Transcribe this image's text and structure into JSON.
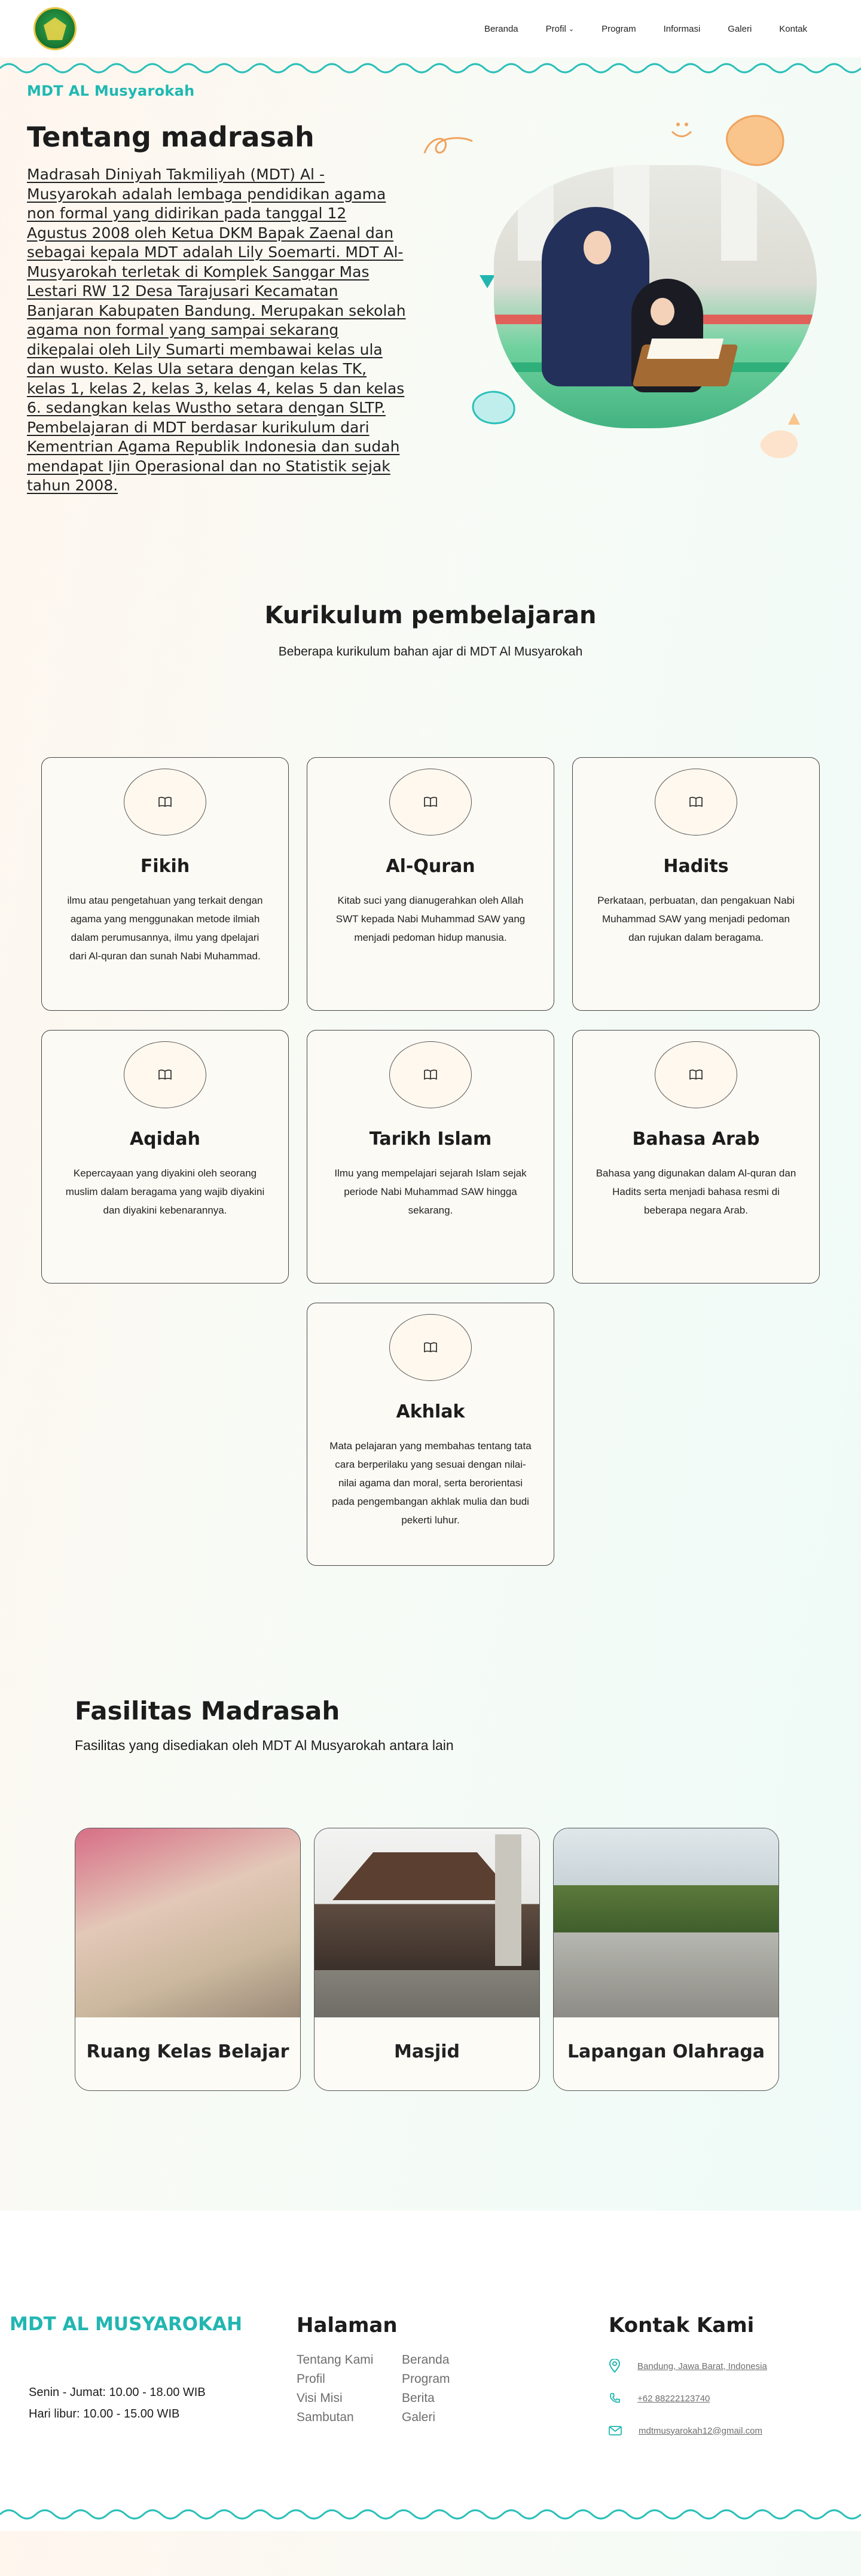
{
  "nav": {
    "items": [
      {
        "label": "Beranda"
      },
      {
        "label": "Profil",
        "has_dropdown": true
      },
      {
        "label": "Program"
      },
      {
        "label": "Informasi"
      },
      {
        "label": "Galeri"
      },
      {
        "label": "Kontak"
      }
    ]
  },
  "hero": {
    "eyebrow": "MDT AL Musyarokah",
    "title": "Tentang madrasah",
    "paragraph": "Madrasah Diniyah Takmiliyah (MDT) Al - Musyarokah adalah lembaga pendidikan agama non formal yang didirikan pada tanggal 12 Agustus 2008 oleh Ketua DKM Bapak Zaenal dan sebagai kepala MDT adalah Lily Soemarti. MDT Al-Musyarokah terletak di Komplek Sanggar Mas Lestari RW 12 Desa Tarajusari Kecamatan Banjaran Kabupaten Bandung. Merupakan sekolah agama non formal yang sampai sekarang dikepalai oleh Lily Sumarti membawai kelas ula dan wusto. Kelas Ula setara dengan kelas TK, kelas 1, kelas 2, kelas 3, kelas 4, kelas 5 dan kelas 6. sedangkan kelas Wustho setara dengan SLTP. Pembelajaran di MDT berdasar kurikulum dari Kementrian Agama Republik Indonesia dan sudah mendapat Ijin Operasional dan no Statistik sejak tahun 2008."
  },
  "kurikulum": {
    "title": "Kurikulum pembelajaran",
    "subtitle": "Beberapa kurikulum bahan ajar di MDT Al Musyarokah",
    "cards": [
      {
        "title": "Fikih",
        "desc": "ilmu atau pengetahuan yang terkait dengan agama yang menggunakan metode ilmiah dalam perumusannya, ilmu yang dpelajari dari Al-quran dan sunah Nabi Muhammad.",
        "icon": "book-icon"
      },
      {
        "title": "Al-Quran",
        "desc": "Kitab suci yang dianugerahkan oleh Allah SWT kepada Nabi Muhammad SAW yang menjadi pedoman hidup manusia.",
        "icon": "book-icon"
      },
      {
        "title": "Hadits",
        "desc": "Perkataan, perbuatan, dan pengakuan Nabi Muhammad SAW yang menjadi pedoman dan rujukan dalam beragama.",
        "icon": "book-icon"
      },
      {
        "title": "Aqidah",
        "desc": "Kepercayaan yang diyakini oleh seorang muslim dalam beragama yang wajib diyakini dan diyakini kebenarannya.",
        "icon": "book-icon"
      },
      {
        "title": "Tarikh Islam",
        "desc": "Ilmu yang mempelajari sejarah Islam sejak periode Nabi Muhammad SAW hingga sekarang.",
        "icon": "book-icon"
      },
      {
        "title": "Bahasa Arab",
        "desc": "Bahasa yang digunakan dalam Al-quran dan Hadits serta menjadi bahasa resmi di beberapa negara Arab.",
        "icon": "book-icon"
      },
      {
        "title": "Akhlak",
        "desc": "Mata pelajaran yang membahas tentang tata cara berperilaku yang sesuai dengan nilai-nilai agama dan moral, serta berorientasi pada pengembangan akhlak mulia dan budi pekerti luhur.",
        "icon": "book-icon"
      }
    ]
  },
  "fasilitas": {
    "title": "Fasilitas Madrasah",
    "subtitle": "Fasilitas yang disediakan oleh MDT Al Musyarokah antara lain",
    "items": [
      {
        "label": "Ruang Kelas Belajar"
      },
      {
        "label": "Masjid"
      },
      {
        "label": "Lapangan Olahraga"
      }
    ]
  },
  "footer": {
    "brand": "MDT AL MUSYAROKAH",
    "hours": [
      "Senin - Jumat: 10.00 - 18.00 WIB",
      "Hari libur: 10.00 - 15.00 WIB"
    ],
    "pages_title": "Halaman",
    "pages": [
      "Tentang Kami",
      "Beranda",
      "Profil",
      "Program",
      "Visi Misi",
      "Berita",
      "Sambutan",
      "Galeri"
    ],
    "contact_title": "Kontak Kami",
    "address": "Bandung, Jawa Barat, Indonesia",
    "phone": "+62 88222123740",
    "email": "mdtmusyarokah12@gmail.com"
  },
  "colors": {
    "accent": "#1fb8b2",
    "card_border": "#444444",
    "footer_bg": "#ffffff"
  }
}
